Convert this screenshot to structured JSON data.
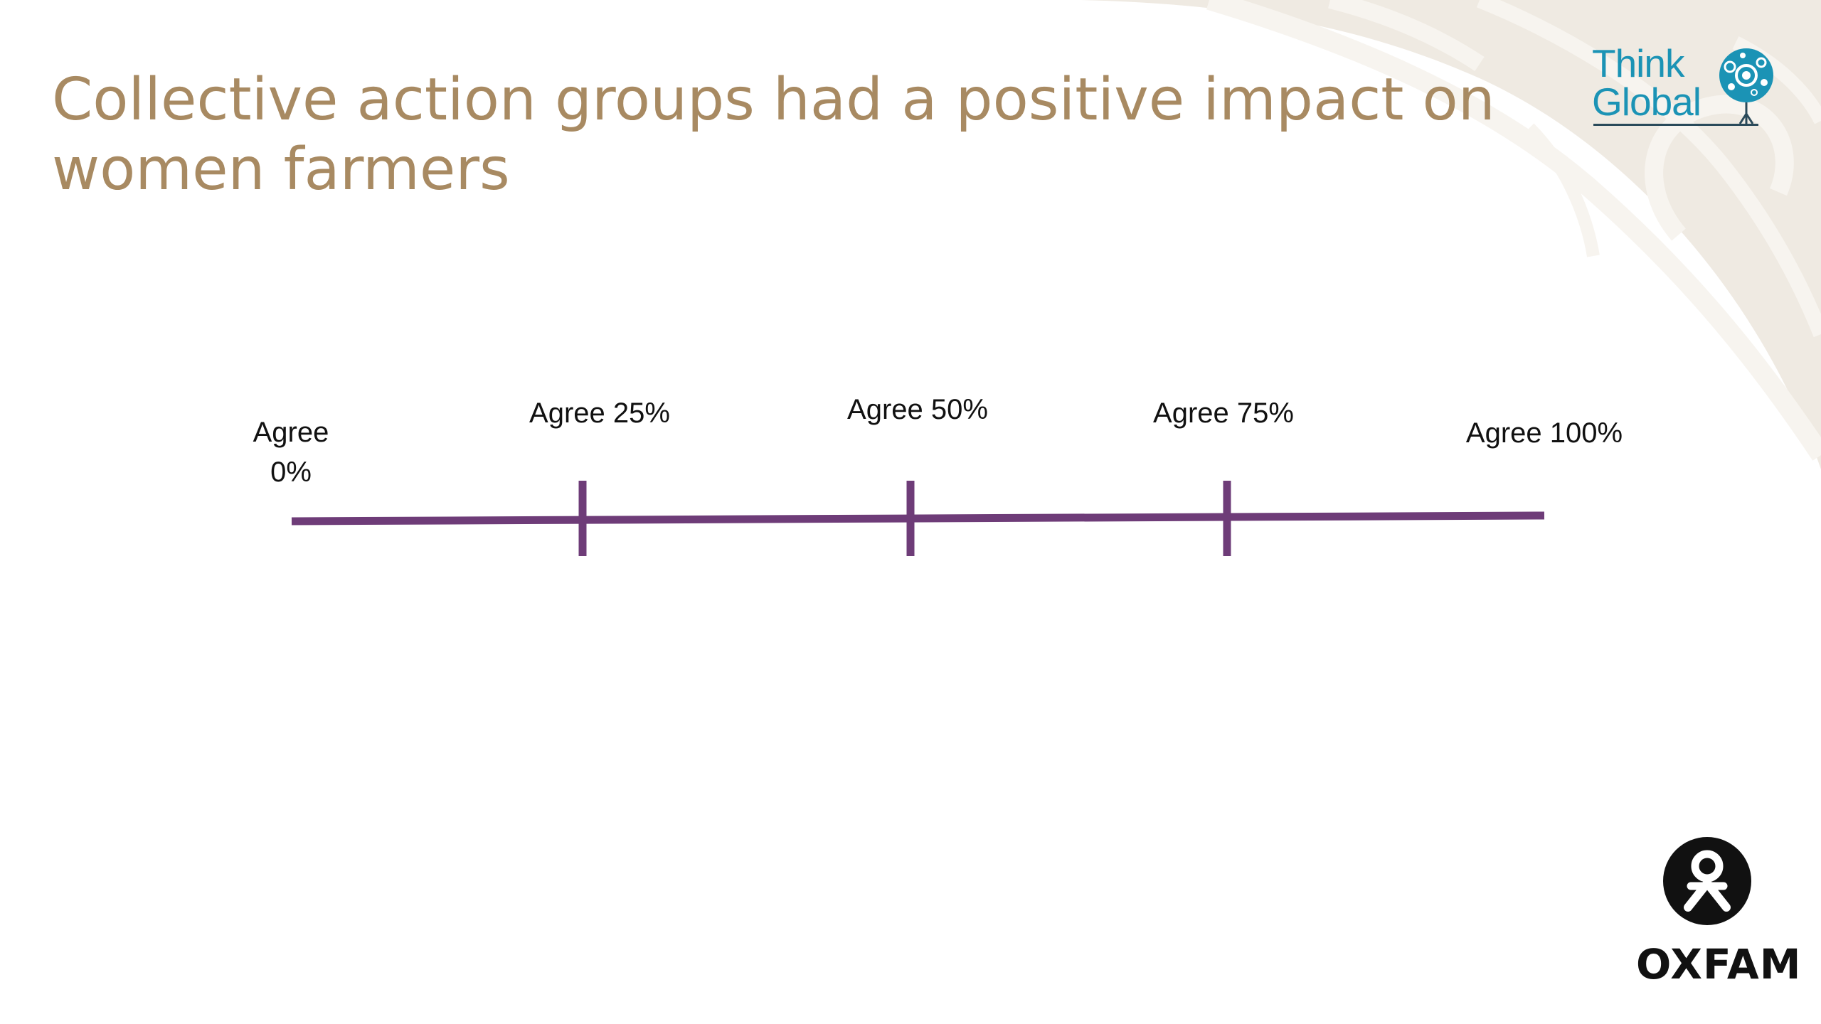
{
  "slide": {
    "title_lines": [
      "Collective action groups had a positive impact on",
      "women farmers"
    ]
  },
  "scale": {
    "labels": {
      "p0_line1": "Agree",
      "p0_line2": "0%",
      "p25": "Agree 25%",
      "p50": "Agree 50%",
      "p75": "Agree 75%",
      "p100": "Agree 100%"
    },
    "line_color": "#6E3C78"
  },
  "logos": {
    "think_global": {
      "line1": "Think",
      "line2": "Global",
      "color": "#1B93B5"
    },
    "oxfam": {
      "text": "OXFAM"
    }
  },
  "colors": {
    "title": "#A88A62",
    "background_deco": "#EFEAE2"
  }
}
